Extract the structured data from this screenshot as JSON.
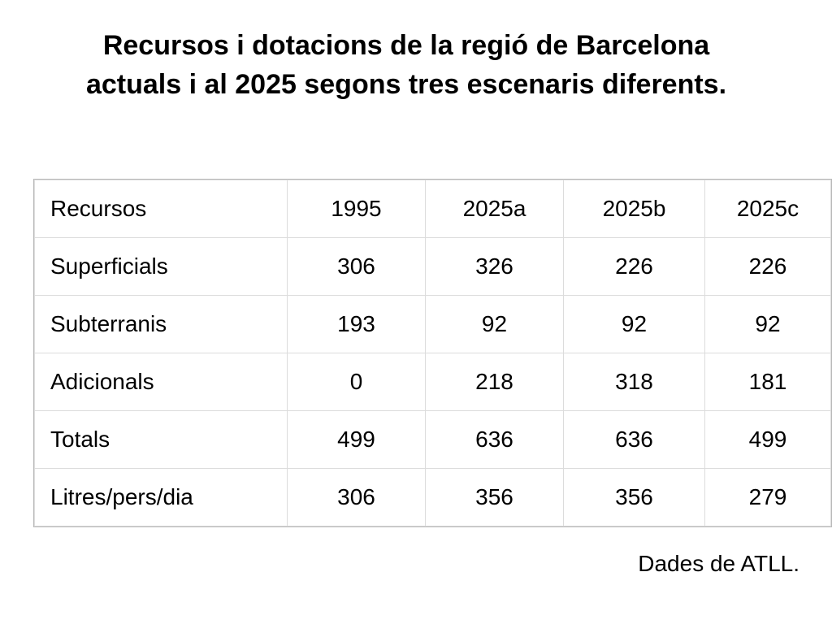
{
  "title": {
    "line1": "Recursos i dotacions de la regió de Barcelona",
    "line2": "actuals i al 2025 segons tres escenaris diferents."
  },
  "table": {
    "headers": [
      "Recursos",
      "1995",
      "2025a",
      "2025b",
      "2025c"
    ],
    "rows": [
      [
        "Superficials",
        "306",
        "326",
        "226",
        "226"
      ],
      [
        "Subterranis",
        "193",
        "92",
        "92",
        "92"
      ],
      [
        "Adicionals",
        "0",
        "218",
        "318",
        "181"
      ],
      [
        "Totals",
        "499",
        "636",
        "636",
        "499"
      ],
      [
        "Litres/pers/dia",
        "306",
        "356",
        "356",
        "279"
      ]
    ]
  },
  "source": "Dades de ATLL.",
  "colors": {
    "background": "#ffffff",
    "text": "#000000",
    "grid": "#dcdcdc"
  }
}
